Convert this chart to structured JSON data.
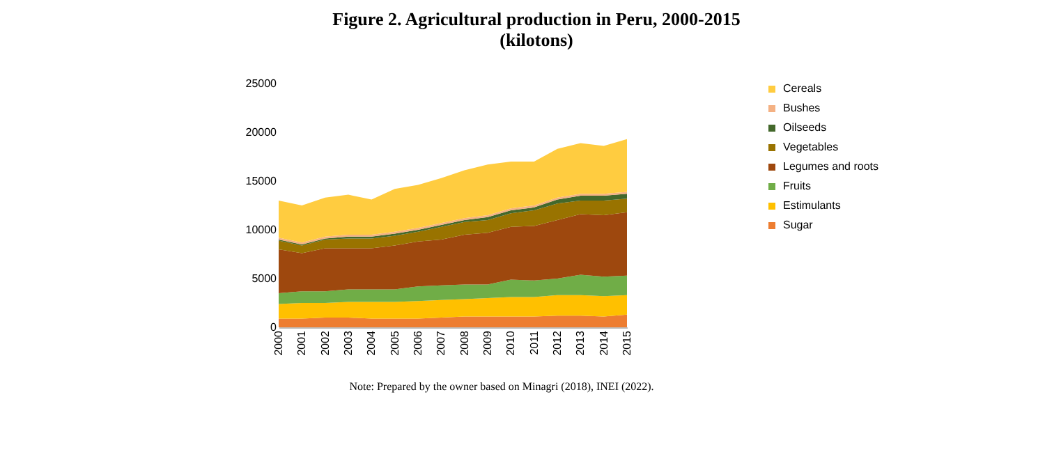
{
  "chart_data": {
    "type": "area",
    "stacked": true,
    "title": "Figure 2. Agricultural production in Peru, 2000-2015\n(kilotons)",
    "annotations": [
      "Note: Prepared by the owner based on Minagri (2018), INEI (2022)."
    ],
    "categories": [
      "2000",
      "2001",
      "2002",
      "2003",
      "2004",
      "2005",
      "2006",
      "2007",
      "2008",
      "2009",
      "2010",
      "2011",
      "2012",
      "2013",
      "2014",
      "2015"
    ],
    "series": [
      {
        "name": "Sugar",
        "color": "#ed7d31",
        "values": [
          900,
          900,
          1000,
          1000,
          900,
          900,
          900,
          1000,
          1100,
          1100,
          1100,
          1100,
          1200,
          1200,
          1100,
          1300
        ]
      },
      {
        "name": "Estimulants",
        "color": "#ffc000",
        "values": [
          1500,
          1600,
          1500,
          1600,
          1700,
          1700,
          1800,
          1800,
          1800,
          1900,
          2000,
          2000,
          2100,
          2100,
          2100,
          2000
        ]
      },
      {
        "name": "Fruits",
        "color": "#70ad47",
        "values": [
          1100,
          1200,
          1200,
          1300,
          1300,
          1300,
          1500,
          1500,
          1500,
          1400,
          1800,
          1700,
          1700,
          2100,
          2000,
          2000
        ]
      },
      {
        "name": "Legumes and roots",
        "color": "#9e480e",
        "values": [
          4500,
          3900,
          4400,
          4200,
          4200,
          4500,
          4600,
          4700,
          5100,
          5300,
          5400,
          5600,
          6000,
          6200,
          6300,
          6500
        ]
      },
      {
        "name": "Vegetables",
        "color": "#997300",
        "values": [
          900,
          800,
          900,
          1000,
          1000,
          1000,
          1000,
          1300,
          1300,
          1300,
          1400,
          1600,
          1700,
          1400,
          1500,
          1400
        ]
      },
      {
        "name": "Oilseeds",
        "color": "#43682b",
        "values": [
          100,
          100,
          100,
          200,
          200,
          200,
          200,
          200,
          200,
          300,
          300,
          300,
          400,
          500,
          500,
          500
        ]
      },
      {
        "name": "Bushes",
        "color": "#f4b183",
        "values": [
          200,
          200,
          200,
          200,
          200,
          200,
          200,
          200,
          200,
          200,
          200,
          200,
          200,
          200,
          200,
          200
        ]
      },
      {
        "name": "Cereals",
        "color": "#ffcc40",
        "values": [
          3800,
          3800,
          4000,
          4100,
          3600,
          4400,
          4400,
          4600,
          4900,
          5200,
          4800,
          4500,
          5000,
          5200,
          4900,
          5400
        ]
      }
    ],
    "ylim": [
      0,
      25000
    ],
    "yticks": [
      0,
      5000,
      10000,
      15000,
      20000,
      25000
    ],
    "grid": false,
    "legend": "right"
  }
}
